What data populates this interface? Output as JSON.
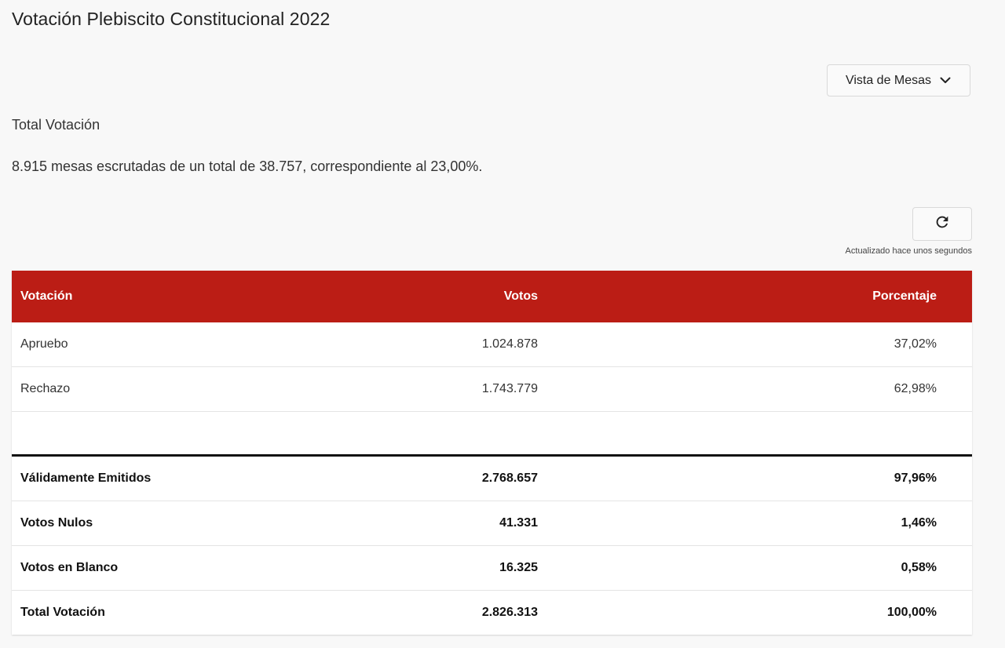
{
  "header": {
    "title": "Votación Plebiscito Constitucional 2022"
  },
  "view_select": {
    "label": "Vista de Mesas",
    "icon": "chevron-down-icon"
  },
  "section": {
    "title": "Total Votación",
    "summary": "8.915 mesas escrutadas de un total de 38.757, correspondiente al 23,00%."
  },
  "refresh": {
    "icon": "refresh-icon",
    "updated_text": "Actualizado hace unos segundos"
  },
  "colors": {
    "header_bg": "#bb1d15",
    "page_bg": "#f8f8f8"
  },
  "table": {
    "columns": [
      "Votación",
      "Votos",
      "Porcentaje"
    ],
    "rows": [
      {
        "name": "Apruebo",
        "votes": "1.024.878",
        "pct": "37,02%"
      },
      {
        "name": "Rechazo",
        "votes": "1.743.779",
        "pct": "62,98%"
      }
    ],
    "totals": [
      {
        "name": "Válidamente Emitidos",
        "votes": "2.768.657",
        "pct": "97,96%"
      },
      {
        "name": "Votos Nulos",
        "votes": "41.331",
        "pct": "1,46%"
      },
      {
        "name": "Votos en Blanco",
        "votes": "16.325",
        "pct": "0,58%"
      },
      {
        "name": "Total Votación",
        "votes": "2.826.313",
        "pct": "100,00%"
      }
    ]
  }
}
